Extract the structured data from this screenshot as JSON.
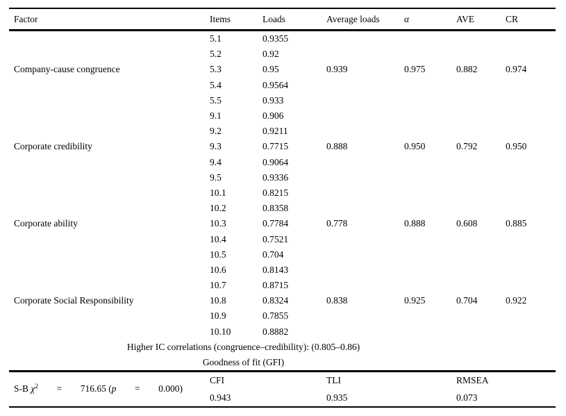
{
  "page": {
    "background_color": "#ffffff",
    "text_color": "#000000"
  },
  "table": {
    "headers": {
      "factor": "Factor",
      "items": "Items",
      "loads": "Loads",
      "average_loads": "Average loads",
      "alpha": "α",
      "ave": "AVE",
      "cr": "CR"
    },
    "groups": [
      {
        "factor": "Company-cause congruence",
        "items": [
          "5.1",
          "5.2",
          "5.3",
          "5.4",
          "5.5"
        ],
        "loads": [
          "0.9355",
          "0.92",
          "0.95",
          "0.9564",
          "0.933"
        ],
        "average_loads": "0.939",
        "alpha": "0.975",
        "ave": "0.882",
        "cr": "0.974"
      },
      {
        "factor": "Corporate credibility",
        "items": [
          "9.1",
          "9.2",
          "9.3",
          "9.4",
          "9.5"
        ],
        "loads": [
          "0.906",
          "0.9211",
          "0.7715",
          "0.9064",
          "0.9336"
        ],
        "average_loads": "0.888",
        "alpha": "0.950",
        "ave": "0.792",
        "cr": "0.950"
      },
      {
        "factor": "Corporate ability",
        "items": [
          "10.1",
          "10.2",
          "10.3",
          "10.4",
          "10.5"
        ],
        "loads": [
          "0.8215",
          "0.8358",
          "0.7784",
          "0.7521",
          "0.704"
        ],
        "average_loads": "0.778",
        "alpha": "0.888",
        "ave": "0.608",
        "cr": "0.885"
      },
      {
        "factor": "Corporate Social Responsibility",
        "items": [
          "10.6",
          "10.7",
          "10.8",
          "10.9",
          "10.10"
        ],
        "loads": [
          "0.8143",
          "0.8715",
          "0.8324",
          "0.7855",
          "0.8882"
        ],
        "average_loads": "0.838",
        "alpha": "0.925",
        "ave": "0.704",
        "cr": "0.922"
      }
    ],
    "notes": {
      "ic_correlations": "Higher IC correlations (congruence–credibility): (0.805–0.86)",
      "goodness_of_fit": "Goodness of fit (GFI)"
    },
    "fit": {
      "sb_prefix": "S-B",
      "chi_symbol": "χ",
      "chi_exponent": "2",
      "equals": "=",
      "chi_value": "716.65 (",
      "p_symbol": "p",
      "p_value": "0.000)",
      "stats": [
        {
          "label": "CFI",
          "value": "0.943"
        },
        {
          "label": "TLI",
          "value": "0.935"
        },
        {
          "label": "RMSEA",
          "value": "0.073"
        }
      ]
    }
  }
}
